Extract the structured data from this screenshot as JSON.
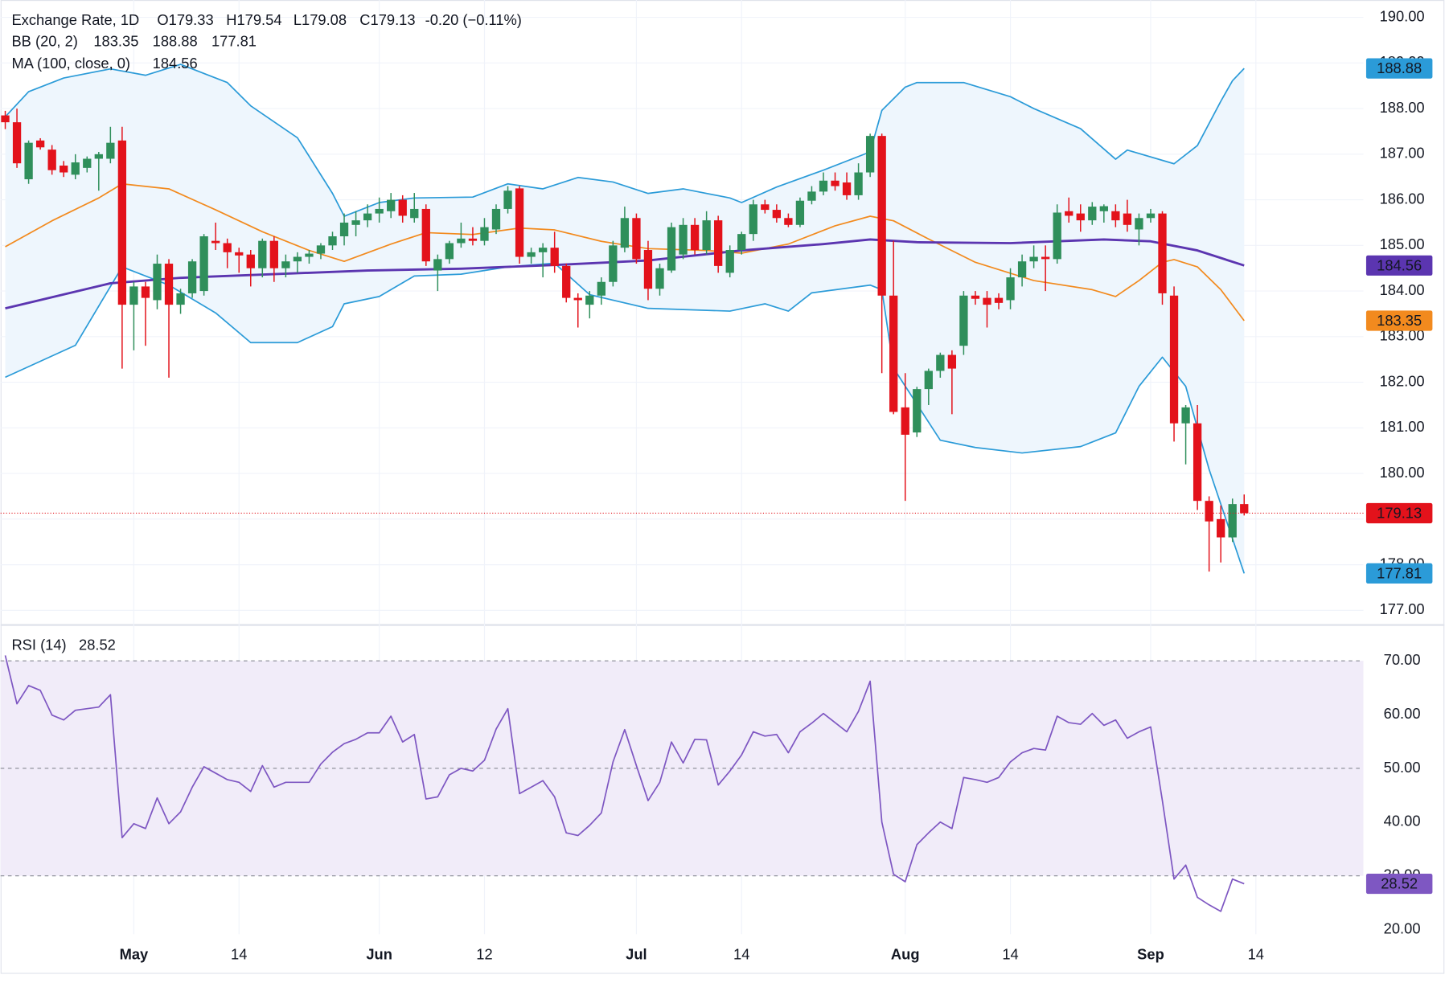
{
  "chart_data": [
    {
      "type": "candlestick",
      "title": "Exchange Rate, 1D",
      "ohlc_labels": [
        "O179.33",
        "H179.54",
        "L179.08",
        "C179.13"
      ],
      "change_label": "-0.20 (−0.11%)",
      "up_color": "#2f8f5b",
      "down_color": "#e3121b",
      "label_color": "#e3121b",
      "xlim": [
        -0.4,
        116.2
      ],
      "xticks": [
        {
          "value": 11,
          "label": "May"
        },
        {
          "value": 20,
          "label": "14"
        },
        {
          "value": 32,
          "label": "Jun"
        },
        {
          "value": 41,
          "label": "12"
        },
        {
          "value": 54,
          "label": "Jul"
        },
        {
          "value": 63,
          "label": "14"
        },
        {
          "value": 77,
          "label": "Aug"
        },
        {
          "value": 86,
          "label": "14"
        },
        {
          "value": 98,
          "label": "Sep"
        },
        {
          "value": 107,
          "label": "14"
        }
      ],
      "ylim": [
        176.7,
        190.38
      ],
      "yticks": [
        {
          "value": 177,
          "label": "177.00"
        },
        {
          "value": 178,
          "label": "178.00"
        },
        {
          "value": 179,
          "label": "179.00"
        },
        {
          "value": 180,
          "label": "180.00"
        },
        {
          "value": 181,
          "label": "181.00"
        },
        {
          "value": 182,
          "label": "182.00"
        },
        {
          "value": 183,
          "label": "183.00"
        },
        {
          "value": 184,
          "label": "184.00"
        },
        {
          "value": 185,
          "label": "185.00"
        },
        {
          "value": 186,
          "label": "186.00"
        },
        {
          "value": 187,
          "label": "187.00"
        },
        {
          "value": 188,
          "label": "188.00"
        },
        {
          "value": 189,
          "label": "189.00"
        },
        {
          "value": 190,
          "label": "190.00"
        }
      ],
      "grid": true,
      "candles": [
        [
          187.85,
          187.95,
          187.55,
          187.7
        ],
        [
          187.7,
          188.0,
          186.7,
          186.8
        ],
        [
          186.45,
          187.3,
          186.35,
          187.25
        ],
        [
          187.3,
          187.35,
          187.1,
          187.15
        ],
        [
          187.1,
          187.2,
          186.55,
          186.65
        ],
        [
          186.75,
          186.85,
          186.5,
          186.6
        ],
        [
          186.55,
          187.0,
          186.45,
          186.82
        ],
        [
          186.7,
          186.95,
          186.6,
          186.9
        ],
        [
          186.9,
          187.05,
          186.2,
          187.0
        ],
        [
          186.9,
          187.6,
          186.8,
          187.25
        ],
        [
          187.3,
          187.6,
          182.3,
          183.7
        ],
        [
          183.7,
          184.2,
          182.7,
          184.1
        ],
        [
          184.1,
          184.2,
          182.8,
          183.85
        ],
        [
          183.8,
          184.8,
          183.6,
          184.6
        ],
        [
          184.6,
          184.7,
          182.1,
          183.7
        ],
        [
          183.7,
          184.05,
          183.5,
          183.95
        ],
        [
          183.95,
          184.7,
          183.85,
          184.65
        ],
        [
          184.0,
          185.25,
          183.9,
          185.2
        ],
        [
          185.1,
          185.5,
          184.9,
          185.05
        ],
        [
          185.05,
          185.15,
          184.5,
          184.85
        ],
        [
          184.85,
          184.95,
          184.4,
          184.78
        ],
        [
          184.8,
          184.9,
          184.1,
          184.5
        ],
        [
          184.5,
          185.15,
          184.3,
          185.1
        ],
        [
          185.1,
          185.2,
          184.2,
          184.5
        ],
        [
          184.5,
          184.8,
          184.3,
          184.65
        ],
        [
          184.65,
          184.85,
          184.4,
          184.75
        ],
        [
          184.75,
          184.9,
          184.6,
          184.82
        ],
        [
          184.82,
          185.05,
          184.7,
          185.0
        ],
        [
          185.0,
          185.3,
          184.9,
          185.2
        ],
        [
          185.2,
          185.7,
          185.0,
          185.5
        ],
        [
          185.45,
          185.75,
          185.2,
          185.55
        ],
        [
          185.55,
          185.9,
          185.4,
          185.7
        ],
        [
          185.7,
          186.05,
          185.5,
          185.8
        ],
        [
          185.75,
          186.15,
          185.6,
          186.0
        ],
        [
          186.0,
          186.1,
          185.5,
          185.65
        ],
        [
          185.6,
          186.15,
          185.5,
          185.8
        ],
        [
          185.8,
          185.9,
          184.55,
          184.65
        ],
        [
          184.45,
          184.8,
          184.0,
          184.7
        ],
        [
          184.7,
          185.1,
          184.6,
          185.05
        ],
        [
          185.05,
          185.5,
          184.95,
          185.15
        ],
        [
          185.15,
          185.4,
          185.0,
          185.1
        ],
        [
          185.1,
          185.6,
          185.0,
          185.4
        ],
        [
          185.35,
          185.9,
          185.25,
          185.8
        ],
        [
          185.8,
          186.3,
          185.7,
          186.2
        ],
        [
          186.25,
          186.3,
          184.6,
          184.75
        ],
        [
          184.75,
          184.95,
          184.6,
          184.85
        ],
        [
          184.85,
          185.05,
          184.3,
          184.95
        ],
        [
          184.95,
          185.3,
          184.4,
          184.55
        ],
        [
          184.55,
          184.6,
          183.75,
          183.85
        ],
        [
          183.85,
          183.95,
          183.2,
          183.8
        ],
        [
          183.7,
          184.0,
          183.4,
          183.9
        ],
        [
          183.9,
          184.3,
          183.7,
          184.2
        ],
        [
          184.2,
          185.1,
          184.1,
          185.0
        ],
        [
          184.95,
          185.85,
          184.85,
          185.6
        ],
        [
          185.6,
          185.7,
          184.6,
          184.7
        ],
        [
          184.9,
          185.1,
          183.8,
          184.05
        ],
        [
          184.05,
          184.6,
          183.9,
          184.5
        ],
        [
          184.45,
          185.5,
          184.4,
          185.4
        ],
        [
          184.8,
          185.6,
          184.7,
          185.45
        ],
        [
          185.45,
          185.6,
          184.8,
          184.9
        ],
        [
          184.9,
          185.75,
          184.8,
          185.55
        ],
        [
          185.55,
          185.65,
          184.4,
          184.55
        ],
        [
          184.4,
          185.0,
          184.3,
          184.9
        ],
        [
          184.9,
          185.3,
          184.8,
          185.25
        ],
        [
          185.25,
          186.0,
          185.1,
          185.9
        ],
        [
          185.9,
          186.0,
          185.7,
          185.78
        ],
        [
          185.78,
          185.9,
          185.5,
          185.6
        ],
        [
          185.6,
          185.7,
          185.4,
          185.45
        ],
        [
          185.45,
          186.05,
          185.4,
          185.98
        ],
        [
          185.98,
          186.3,
          185.9,
          186.18
        ],
        [
          186.18,
          186.6,
          186.1,
          186.42
        ],
        [
          186.42,
          186.6,
          186.2,
          186.3
        ],
        [
          186.38,
          186.6,
          186.0,
          186.1
        ],
        [
          186.1,
          186.8,
          186.0,
          186.6
        ],
        [
          186.6,
          187.45,
          186.5,
          187.4
        ],
        [
          187.4,
          187.45,
          182.2,
          183.9
        ],
        [
          183.9,
          185.1,
          181.3,
          181.35
        ],
        [
          181.45,
          182.2,
          179.4,
          180.85
        ],
        [
          180.9,
          181.9,
          180.8,
          181.85
        ],
        [
          181.85,
          182.3,
          181.5,
          182.25
        ],
        [
          182.25,
          182.65,
          182.1,
          182.6
        ],
        [
          182.6,
          182.7,
          181.3,
          182.3
        ],
        [
          182.8,
          184.0,
          182.6,
          183.9
        ],
        [
          183.9,
          184.0,
          183.7,
          183.83
        ],
        [
          183.85,
          184.0,
          183.2,
          183.7
        ],
        [
          183.85,
          183.95,
          183.6,
          183.74
        ],
        [
          183.8,
          184.5,
          183.6,
          184.3
        ],
        [
          184.3,
          184.8,
          184.1,
          184.65
        ],
        [
          184.65,
          185.0,
          184.5,
          184.75
        ],
        [
          184.75,
          185.0,
          184.0,
          184.7
        ],
        [
          184.7,
          185.9,
          184.6,
          185.72
        ],
        [
          185.75,
          186.05,
          185.5,
          185.65
        ],
        [
          185.7,
          185.9,
          185.3,
          185.55
        ],
        [
          185.55,
          185.95,
          185.45,
          185.85
        ],
        [
          185.75,
          185.9,
          185.5,
          185.86
        ],
        [
          185.75,
          185.9,
          185.4,
          185.55
        ],
        [
          185.7,
          186.0,
          185.3,
          185.45
        ],
        [
          185.35,
          185.7,
          185.0,
          185.6
        ],
        [
          185.6,
          185.8,
          185.5,
          185.7
        ],
        [
          185.7,
          185.75,
          183.7,
          183.95
        ],
        [
          183.9,
          184.1,
          180.7,
          181.1
        ],
        [
          181.1,
          181.5,
          180.2,
          181.45
        ],
        [
          181.1,
          181.5,
          179.2,
          179.4
        ],
        [
          179.4,
          179.5,
          177.85,
          178.95
        ],
        [
          179.0,
          179.3,
          178.05,
          178.6
        ],
        [
          178.6,
          179.45,
          178.5,
          179.33
        ],
        [
          179.33,
          179.54,
          179.08,
          179.13
        ]
      ],
      "bb": {
        "label": "BB (20, 2)",
        "fill": "#eef6fd",
        "middle": {
          "color": "#f28a1e",
          "x": [
            0,
            4,
            8,
            10,
            14,
            18,
            22,
            26,
            29,
            33,
            36,
            40,
            44,
            47,
            51,
            55,
            60,
            63,
            67,
            71,
            74,
            76,
            79,
            83,
            88,
            93,
            95,
            97,
            99,
            100,
            102,
            104,
            106
          ],
          "values": [
            184.97,
            185.54,
            186.04,
            186.35,
            186.24,
            185.78,
            185.3,
            184.89,
            184.65,
            185.03,
            185.28,
            185.24,
            185.38,
            185.34,
            185.09,
            184.93,
            184.89,
            184.83,
            185.03,
            185.43,
            185.64,
            185.54,
            185.14,
            184.63,
            184.23,
            184.03,
            183.88,
            184.23,
            184.63,
            184.69,
            184.53,
            184.03,
            183.35
          ]
        },
        "upper": {
          "color": "#2b9bd8",
          "x": [
            0,
            2,
            5,
            9,
            12,
            15,
            19,
            21,
            25,
            28,
            29,
            32,
            35,
            40,
            43,
            46,
            49,
            52,
            55,
            58,
            62,
            63,
            66,
            70,
            74,
            75,
            77,
            78,
            82,
            86,
            88,
            92,
            95,
            96,
            100,
            102,
            104,
            105,
            106
          ],
          "values": [
            187.82,
            188.37,
            188.67,
            188.87,
            188.73,
            188.97,
            188.57,
            188.06,
            187.36,
            186.14,
            185.64,
            185.94,
            186.04,
            186.06,
            186.35,
            186.24,
            186.49,
            186.39,
            186.14,
            186.24,
            186.04,
            185.94,
            186.28,
            186.65,
            187.05,
            187.96,
            188.47,
            188.57,
            188.57,
            188.26,
            188.0,
            187.56,
            186.89,
            187.09,
            186.79,
            187.19,
            188.16,
            188.61,
            188.88
          ]
        },
        "lower": {
          "color": "#2b9bd8",
          "x": [
            0,
            6,
            10,
            14,
            18,
            21,
            25,
            28,
            29,
            32,
            35,
            39,
            43,
            47,
            50,
            55,
            62,
            65,
            67,
            69,
            74,
            75,
            76,
            80,
            83,
            87,
            92,
            93,
            95,
            97,
            99,
            101,
            103,
            105,
            106
          ],
          "values": [
            182.11,
            182.81,
            184.53,
            184.13,
            183.52,
            182.87,
            182.87,
            183.22,
            183.72,
            183.88,
            184.33,
            184.37,
            184.53,
            184.61,
            183.92,
            183.62,
            183.56,
            183.72,
            183.56,
            183.96,
            184.13,
            184.03,
            182.31,
            180.73,
            180.57,
            180.45,
            180.59,
            180.69,
            180.89,
            181.91,
            182.55,
            181.91,
            180.09,
            178.57,
            177.81
          ]
        }
      },
      "ma": {
        "label": "MA (100, close, 0)",
        "color": "#5b35b0",
        "x": [
          0,
          9,
          15,
          23,
          31,
          39,
          47,
          55,
          63,
          70,
          74,
          78,
          86,
          94,
          98,
          102,
          106
        ],
        "values": [
          183.62,
          184.17,
          184.29,
          184.37,
          184.45,
          184.49,
          184.57,
          184.67,
          184.89,
          185.03,
          185.13,
          185.07,
          185.05,
          185.13,
          185.09,
          184.89,
          184.56
        ]
      }
    },
    {
      "type": "line",
      "title": "RSI (14)",
      "color": "#7e57c2",
      "band": [
        30,
        70
      ],
      "band_color": "#f1ecf9",
      "levels": [
        30,
        50,
        70
      ],
      "ylim": [
        19.14,
        76.5
      ],
      "yticks": [
        {
          "value": 20,
          "label": "20.00"
        },
        {
          "value": 30,
          "label": "30.00"
        },
        {
          "value": 40,
          "label": "40.00"
        },
        {
          "value": 50,
          "label": "50.00"
        },
        {
          "value": 60,
          "label": "60.00"
        },
        {
          "value": 70,
          "label": "70.00"
        }
      ],
      "values": [
        71.0,
        62.0,
        65.4,
        64.5,
        59.9,
        59.0,
        60.8,
        61.1,
        61.4,
        63.7,
        37.1,
        39.7,
        38.8,
        44.5,
        39.7,
        41.9,
        46.5,
        50.3,
        49.1,
        47.9,
        47.4,
        45.7,
        50.5,
        46.5,
        47.4,
        47.4,
        47.4,
        50.8,
        53.0,
        54.6,
        55.4,
        56.6,
        56.6,
        59.7,
        54.9,
        56.3,
        44.3,
        44.7,
        48.8,
        50.0,
        49.5,
        51.5,
        57.3,
        61.1,
        45.3,
        46.5,
        47.7,
        44.7,
        38.0,
        37.5,
        39.4,
        41.7,
        51.2,
        57.2,
        50.5,
        44.0,
        47.4,
        54.9,
        51.0,
        55.4,
        55.3,
        46.9,
        49.5,
        52.5,
        56.8,
        56.0,
        56.3,
        52.9,
        56.8,
        58.4,
        60.2,
        58.5,
        56.8,
        60.6,
        66.2,
        40.0,
        30.3,
        28.9,
        35.8,
        38.0,
        40.0,
        38.8,
        48.3,
        47.9,
        47.4,
        48.3,
        51.2,
        52.9,
        53.7,
        53.4,
        59.7,
        58.5,
        58.2,
        60.2,
        58.0,
        59.0,
        55.6,
        56.8,
        57.7,
        44.0,
        29.4,
        32.0,
        26.0,
        24.6,
        23.4,
        29.4,
        28.52
      ]
    }
  ]
}
